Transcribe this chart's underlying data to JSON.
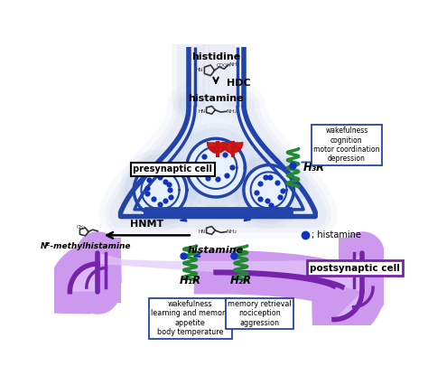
{
  "bg_color": "#ffffff",
  "pre_color": "#2244aa",
  "pre_shadow": "#aabbdd",
  "post_color": "#7722aa",
  "post_shadow": "#cc99ee",
  "dot_color": "#1133bb",
  "rec_color": "#228833",
  "red_color": "#cc1111",
  "h3r_box": "wakefulness\ncognition\nmotor coordination\ndepression",
  "h1r_box": "wakefulness\nlearning and memory\nappetite\nbody temperature",
  "h2r_box": "memory retrieval\nnociception\naggression",
  "pre_label": "presynaptic cell",
  "post_label": "postsynaptic cell",
  "histidine_txt": "histidine",
  "hdc_txt": "HDC",
  "hist1_txt": "histamine",
  "hist2_txt": "histamine",
  "hnmt_txt": "HNMT",
  "nmethyl_txt": "Nᴱ-methylhistamine",
  "h1r_txt": "H₁R",
  "h2r_txt": "H₂R",
  "h3r_txt": "H₃R",
  "legend_txt": "; histamine"
}
